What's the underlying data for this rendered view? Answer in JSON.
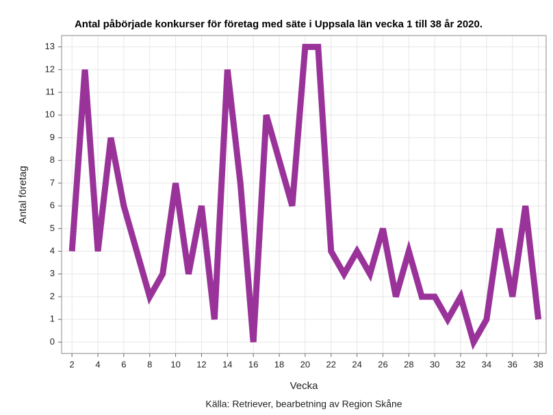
{
  "chart_data": {
    "type": "line",
    "title": "Antal påbörjade konkurser för företag med säte i Uppsala län vecka 1 till 38 år 2020.",
    "xlabel": "Vecka",
    "ylabel": "Antal företag",
    "source": "Källa: Retriever, bearbetning av Region Skåne",
    "x": [
      2,
      3,
      4,
      5,
      6,
      7,
      8,
      9,
      10,
      11,
      12,
      13,
      14,
      15,
      16,
      17,
      18,
      19,
      20,
      21,
      22,
      23,
      24,
      25,
      26,
      27,
      28,
      29,
      30,
      31,
      32,
      33,
      34,
      35,
      36,
      37,
      38
    ],
    "series": [
      {
        "name": "Antal företag",
        "color": "#993399",
        "values": [
          4,
          12,
          4,
          9,
          6,
          4,
          2,
          3,
          7,
          3,
          6,
          1,
          12,
          7,
          0,
          10,
          8,
          6,
          13,
          13,
          4,
          3,
          4,
          3,
          5,
          2,
          4,
          2,
          2,
          1,
          2,
          0,
          1,
          5,
          2,
          6,
          1
        ]
      }
    ],
    "xlim": [
      1.2,
      38.6
    ],
    "xticks": [
      2,
      4,
      6,
      8,
      10,
      12,
      14,
      16,
      18,
      20,
      22,
      24,
      26,
      28,
      30,
      32,
      34,
      36,
      38
    ],
    "ylim": [
      -0.5,
      13.5
    ],
    "yticks": [
      0,
      1,
      2,
      3,
      4,
      5,
      6,
      7,
      8,
      9,
      10,
      11,
      12,
      13
    ],
    "grid": true
  }
}
